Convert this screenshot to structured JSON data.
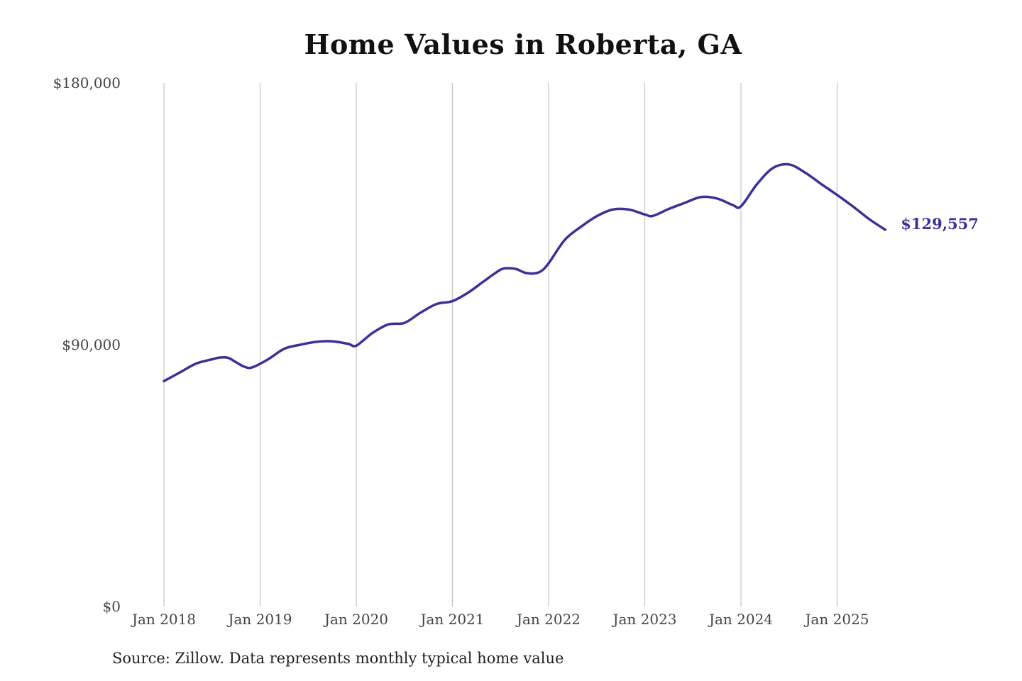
{
  "chart_data": {
    "type": "line",
    "title": "Home Values in Roberta, GA",
    "source": "Source: Zillow. Data represents monthly typical home value",
    "xlabel": "",
    "ylabel": "",
    "ylim": [
      0,
      180000
    ],
    "y_ticks": [
      "$180,000",
      "$90,000",
      "$0"
    ],
    "x_ticks": [
      "Jan 2018",
      "Jan 2019",
      "Jan 2020",
      "Jan 2021",
      "Jan 2022",
      "Jan 2023",
      "Jan 2024",
      "Jan 2025"
    ],
    "grid": "vertical",
    "line_color": "#3a3199",
    "end_label": "$129,557",
    "series": [
      {
        "x": [
          "2018-01",
          "2018-03",
          "2018-05",
          "2018-07",
          "2018-08",
          "2018-09",
          "2018-10",
          "2018-11",
          "2018-12",
          "2019-02",
          "2019-04",
          "2019-06",
          "2019-08",
          "2019-10",
          "2019-12",
          "2020-01",
          "2020-03",
          "2020-05",
          "2020-07",
          "2020-09",
          "2020-11",
          "2021-01",
          "2021-03",
          "2021-05",
          "2021-07",
          "2021-08",
          "2021-09",
          "2021-10",
          "2021-11",
          "2021-12",
          "2022-01",
          "2022-03",
          "2022-05",
          "2022-07",
          "2022-09",
          "2022-11",
          "2023-01",
          "2023-02",
          "2023-04",
          "2023-06",
          "2023-08",
          "2023-10",
          "2023-12",
          "2024-01",
          "2024-03",
          "2024-05",
          "2024-07",
          "2024-09",
          "2024-11",
          "2025-01",
          "2025-03",
          "2025-05",
          "2025-07"
        ],
        "values": [
          77500,
          80500,
          83500,
          85000,
          85600,
          85500,
          84000,
          82500,
          82200,
          85000,
          88600,
          90000,
          91000,
          91200,
          90300,
          89700,
          94000,
          97000,
          97500,
          101000,
          104000,
          105000,
          108000,
          112000,
          115800,
          116300,
          116000,
          114800,
          114500,
          115200,
          118000,
          126000,
          130500,
          134200,
          136500,
          136500,
          134800,
          134300,
          136700,
          138800,
          140800,
          140300,
          138000,
          137600,
          145200,
          150800,
          152000,
          149200,
          145300,
          141500,
          137500,
          133200,
          129557
        ]
      }
    ]
  }
}
